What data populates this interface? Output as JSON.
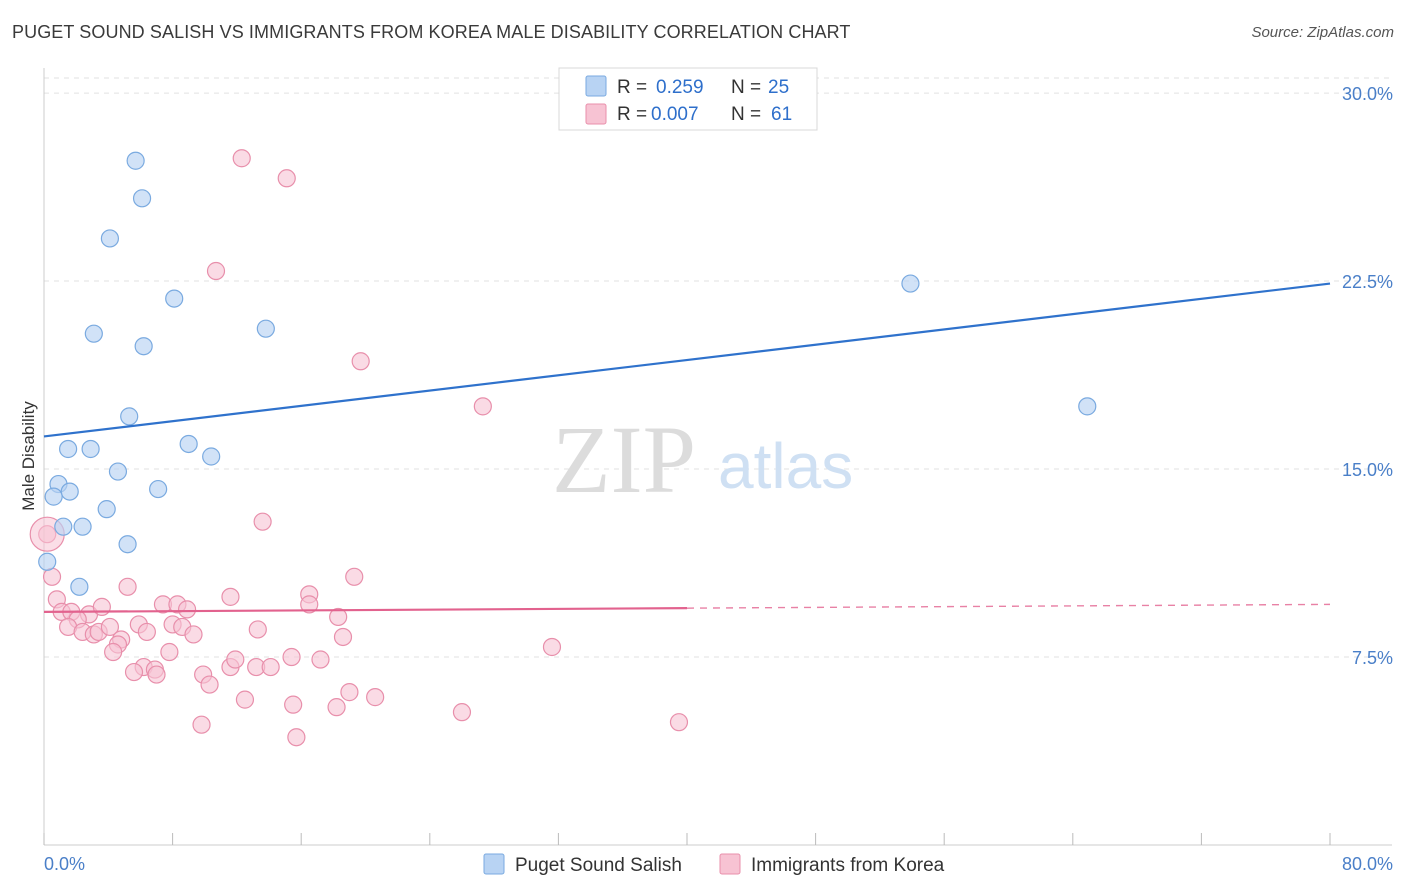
{
  "header": {
    "title": "PUGET SOUND SALISH VS IMMIGRANTS FROM KOREA MALE DISABILITY CORRELATION CHART",
    "source": "Source: ZipAtlas.com"
  },
  "watermark": {
    "zip": "ZIP",
    "atlas": "atlas"
  },
  "legend": {
    "rows": [
      {
        "r_label": "R = ",
        "r_value": "0.259",
        "n_label": "N = ",
        "n_value": "25"
      },
      {
        "r_label": "R = ",
        "r_value": "0.007",
        "n_label": "N = ",
        "n_value": "61"
      }
    ]
  },
  "colors": {
    "series1_fill": "#b8d3f3",
    "series1_stroke": "#7aaae0",
    "series1_line": "#2f72cc",
    "series2_fill": "#f7c3d3",
    "series2_stroke": "#e88fab",
    "series2_line": "#e2628e",
    "tick": "#4a7fc8",
    "grid": "#e2e2e2"
  },
  "chart_data": {
    "type": "scatter",
    "title": "PUGET SOUND SALISH VS IMMIGRANTS FROM KOREA MALE DISABILITY CORRELATION CHART",
    "xlabel": "",
    "ylabel": "Male Disability",
    "xlim": [
      0,
      80
    ],
    "ylim": [
      0,
      31
    ],
    "x_tick_labels": [
      {
        "value": 0,
        "label": "0.0%"
      },
      {
        "value": 80,
        "label": "80.0%"
      }
    ],
    "y_tick_labels": [
      {
        "value": 7.5,
        "label": "7.5%"
      },
      {
        "value": 15.0,
        "label": "15.0%"
      },
      {
        "value": 22.5,
        "label": "22.5%"
      },
      {
        "value": 30.0,
        "label": "30.0%"
      }
    ],
    "grid": true,
    "legend_position": "top-center",
    "series": [
      {
        "name": "Puget Sound Salish",
        "r": 0.259,
        "n": 25,
        "trend": {
          "x": [
            0,
            80
          ],
          "y": [
            16.3,
            22.4
          ],
          "dashed_from": null
        },
        "points": [
          [
            5.7,
            27.3
          ],
          [
            6.1,
            25.8
          ],
          [
            4.1,
            24.2
          ],
          [
            8.1,
            21.8
          ],
          [
            3.1,
            20.4
          ],
          [
            6.2,
            19.9
          ],
          [
            13.8,
            20.6
          ],
          [
            53.9,
            22.4
          ],
          [
            64.9,
            17.5
          ],
          [
            5.3,
            17.1
          ],
          [
            1.5,
            15.8
          ],
          [
            2.9,
            15.8
          ],
          [
            9.0,
            16.0
          ],
          [
            10.4,
            15.5
          ],
          [
            4.6,
            14.9
          ],
          [
            0.9,
            14.4
          ],
          [
            1.6,
            14.1
          ],
          [
            7.1,
            14.2
          ],
          [
            0.6,
            13.9
          ],
          [
            3.9,
            13.4
          ],
          [
            1.2,
            12.7
          ],
          [
            2.4,
            12.7
          ],
          [
            5.2,
            12.0
          ],
          [
            0.2,
            11.3
          ],
          [
            2.2,
            10.3
          ]
        ]
      },
      {
        "name": "Immigrants from Korea",
        "r": 0.007,
        "n": 61,
        "trend": {
          "x": [
            0,
            80
          ],
          "y": [
            9.3,
            9.6
          ],
          "dashed_from": 40
        },
        "points": [
          [
            12.3,
            27.4
          ],
          [
            15.1,
            26.6
          ],
          [
            10.7,
            22.9
          ],
          [
            19.7,
            19.3
          ],
          [
            27.3,
            17.5
          ],
          [
            0.2,
            12.4
          ],
          [
            13.6,
            12.9
          ],
          [
            0.5,
            10.7
          ],
          [
            19.3,
            10.7
          ],
          [
            5.2,
            10.3
          ],
          [
            11.6,
            9.9
          ],
          [
            16.5,
            10.0
          ],
          [
            0.8,
            9.8
          ],
          [
            1.1,
            9.3
          ],
          [
            1.7,
            9.3
          ],
          [
            2.8,
            9.2
          ],
          [
            3.6,
            9.5
          ],
          [
            7.4,
            9.6
          ],
          [
            8.3,
            9.6
          ],
          [
            8.9,
            9.4
          ],
          [
            16.5,
            9.6
          ],
          [
            18.3,
            9.1
          ],
          [
            2.1,
            9.0
          ],
          [
            1.5,
            8.7
          ],
          [
            2.4,
            8.5
          ],
          [
            3.1,
            8.4
          ],
          [
            3.4,
            8.5
          ],
          [
            4.1,
            8.7
          ],
          [
            5.9,
            8.8
          ],
          [
            6.4,
            8.5
          ],
          [
            8.0,
            8.8
          ],
          [
            8.6,
            8.7
          ],
          [
            9.3,
            8.4
          ],
          [
            13.3,
            8.6
          ],
          [
            18.6,
            8.3
          ],
          [
            31.6,
            7.9
          ],
          [
            4.8,
            8.2
          ],
          [
            4.6,
            8.0
          ],
          [
            4.3,
            7.7
          ],
          [
            7.8,
            7.7
          ],
          [
            6.2,
            7.1
          ],
          [
            6.9,
            7.0
          ],
          [
            5.6,
            6.9
          ],
          [
            7.0,
            6.8
          ],
          [
            9.9,
            6.8
          ],
          [
            11.6,
            7.1
          ],
          [
            11.9,
            7.4
          ],
          [
            13.2,
            7.1
          ],
          [
            14.1,
            7.1
          ],
          [
            15.4,
            7.5
          ],
          [
            17.2,
            7.4
          ],
          [
            10.3,
            6.4
          ],
          [
            12.5,
            5.8
          ],
          [
            15.5,
            5.6
          ],
          [
            18.2,
            5.5
          ],
          [
            19.0,
            6.1
          ],
          [
            20.6,
            5.9
          ],
          [
            26.0,
            5.3
          ],
          [
            9.8,
            4.8
          ],
          [
            15.7,
            4.3
          ],
          [
            39.5,
            4.9
          ]
        ]
      }
    ]
  }
}
